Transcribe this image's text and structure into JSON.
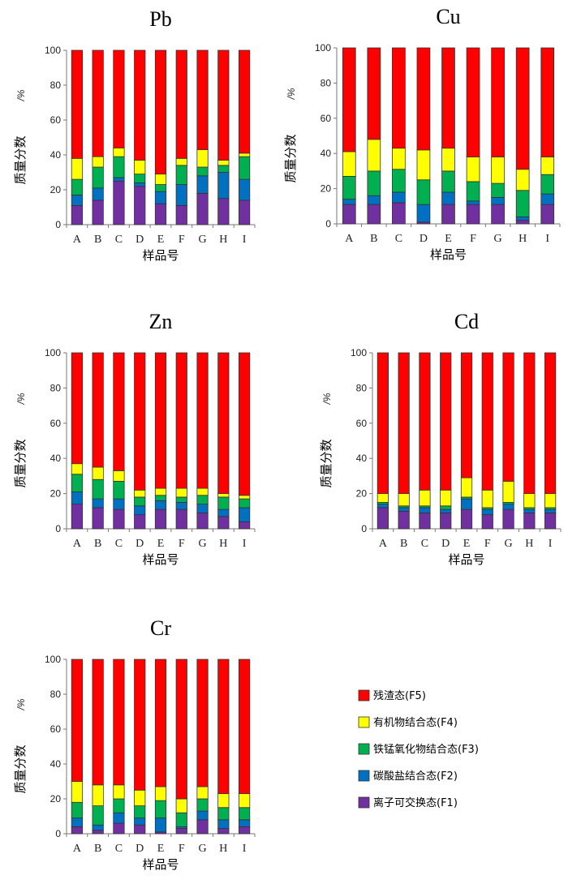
{
  "chart_data": [
    {
      "type": "bar",
      "stacked": true,
      "title": "Pb",
      "xlabel": "样品号",
      "ylabel": "质量分数",
      "yunit": "/%",
      "ylim": [
        0,
        100
      ],
      "yticks": [
        0,
        20,
        40,
        60,
        80,
        100
      ],
      "categories": [
        "A",
        "B",
        "C",
        "D",
        "E",
        "F",
        "G",
        "H",
        "I"
      ],
      "series": [
        {
          "name": "离子可交换态(F1)",
          "values": [
            11,
            14,
            25,
            22,
            12,
            11,
            18,
            15,
            14
          ]
        },
        {
          "name": "碳酸盐结合态(F2)",
          "values": [
            6,
            7,
            2,
            2,
            7,
            12,
            10,
            15,
            12
          ]
        },
        {
          "name": "铁锰氧化物结合态(F3)",
          "values": [
            9,
            12,
            12,
            5,
            4,
            11,
            5,
            4,
            13
          ]
        },
        {
          "name": "有机物结合态(F4)",
          "values": [
            12,
            6,
            5,
            8,
            6,
            4,
            10,
            3,
            2
          ]
        },
        {
          "name": "残渣态(F5)",
          "values": [
            62,
            61,
            56,
            63,
            71,
            62,
            57,
            63,
            59
          ]
        }
      ]
    },
    {
      "type": "bar",
      "stacked": true,
      "title": "Cu",
      "xlabel": "样品号",
      "ylabel": "质量分数",
      "yunit": "/%",
      "ylim": [
        0,
        100
      ],
      "yticks": [
        0,
        20,
        40,
        60,
        80,
        100
      ],
      "categories": [
        "A",
        "B",
        "C",
        "D",
        "E",
        "F",
        "G",
        "H",
        "I"
      ],
      "series": [
        {
          "name": "离子可交换态(F1)",
          "values": [
            11,
            11,
            12,
            1,
            11,
            11,
            11,
            2,
            11
          ]
        },
        {
          "name": "碳酸盐结合态(F2)",
          "values": [
            3,
            5,
            6,
            10,
            7,
            2,
            4,
            2,
            6
          ]
        },
        {
          "name": "铁锰氧化物结合态(F3)",
          "values": [
            13,
            14,
            13,
            14,
            12,
            11,
            8,
            15,
            11
          ]
        },
        {
          "name": "有机物结合态(F4)",
          "values": [
            14,
            18,
            12,
            17,
            13,
            14,
            15,
            12,
            10
          ]
        },
        {
          "name": "残渣态(F5)",
          "values": [
            59,
            52,
            57,
            58,
            57,
            62,
            62,
            69,
            62
          ]
        }
      ]
    },
    {
      "type": "bar",
      "stacked": true,
      "title": "Zn",
      "xlabel": "样品号",
      "ylabel": "质量分数",
      "yunit": "/%",
      "ylim": [
        0,
        100
      ],
      "yticks": [
        0,
        20,
        40,
        60,
        80,
        100
      ],
      "categories": [
        "A",
        "B",
        "C",
        "D",
        "E",
        "F",
        "G",
        "H",
        "I"
      ],
      "series": [
        {
          "name": "离子可交换态(F1)",
          "values": [
            14,
            12,
            11,
            8,
            11,
            11,
            9,
            7,
            4
          ]
        },
        {
          "name": "碳酸盐结合态(F2)",
          "values": [
            7,
            5,
            6,
            5,
            5,
            4,
            5,
            4,
            8
          ]
        },
        {
          "name": "铁锰氧化物结合态(F3)",
          "values": [
            10,
            11,
            10,
            5,
            3,
            3,
            5,
            7,
            5
          ]
        },
        {
          "name": "有机物结合态(F4)",
          "values": [
            6,
            7,
            6,
            4,
            4,
            5,
            4,
            2,
            2
          ]
        },
        {
          "name": "残渣态(F5)",
          "values": [
            63,
            65,
            67,
            78,
            77,
            77,
            77,
            80,
            81
          ]
        }
      ]
    },
    {
      "type": "bar",
      "stacked": true,
      "title": "Cd",
      "xlabel": "样品号",
      "ylabel": "质量分数",
      "yunit": "/%",
      "ylim": [
        0,
        100
      ],
      "yticks": [
        0,
        20,
        40,
        60,
        80,
        100
      ],
      "categories": [
        "A",
        "B",
        "C",
        "D",
        "E",
        "F",
        "G",
        "H",
        "I"
      ],
      "series": [
        {
          "name": "离子可交换态(F1)",
          "values": [
            12,
            10,
            9,
            9,
            11,
            8,
            11,
            9,
            9
          ]
        },
        {
          "name": "碳酸盐结合态(F2)",
          "values": [
            2,
            2,
            3,
            2,
            6,
            3,
            3,
            2,
            2
          ]
        },
        {
          "name": "铁锰氧化物结合态(F3)",
          "values": [
            1,
            1,
            1,
            2,
            1,
            1,
            1,
            1,
            1
          ]
        },
        {
          "name": "有机物结合态(F4)",
          "values": [
            5,
            7,
            9,
            9,
            11,
            10,
            12,
            8,
            8
          ]
        },
        {
          "name": "残渣态(F5)",
          "values": [
            80,
            80,
            78,
            78,
            71,
            78,
            73,
            80,
            80
          ]
        }
      ]
    },
    {
      "type": "bar",
      "stacked": true,
      "title": "Cr",
      "xlabel": "样品号",
      "ylabel": "质量分数",
      "yunit": "/%",
      "ylim": [
        0,
        100
      ],
      "yticks": [
        0,
        20,
        40,
        60,
        80,
        100
      ],
      "categories": [
        "A",
        "B",
        "C",
        "D",
        "E",
        "F",
        "G",
        "H",
        "I"
      ],
      "series": [
        {
          "name": "离子可交换态(F1)",
          "values": [
            4,
            2,
            6,
            5,
            1,
            3,
            8,
            3,
            4
          ]
        },
        {
          "name": "碳酸盐结合态(F2)",
          "values": [
            5,
            3,
            6,
            4,
            8,
            1,
            5,
            5,
            4
          ]
        },
        {
          "name": "铁锰氧化物结合态(F3)",
          "values": [
            9,
            11,
            8,
            7,
            10,
            8,
            7,
            7,
            7
          ]
        },
        {
          "name": "有机物结合态(F4)",
          "values": [
            12,
            12,
            8,
            9,
            8,
            8,
            7,
            8,
            8
          ]
        },
        {
          "name": "残渣态(F5)",
          "values": [
            70,
            72,
            72,
            75,
            73,
            80,
            73,
            77,
            77
          ]
        }
      ]
    }
  ],
  "legend": {
    "items": [
      {
        "label": "残渣态(F5)",
        "color": "#ff0000"
      },
      {
        "label": "有机物结合态(F4)",
        "color": "#ffff00"
      },
      {
        "label": "铁锰氧化物结合态(F3)",
        "color": "#00b050"
      },
      {
        "label": "碳酸盐结合态(F2)",
        "color": "#0070c0"
      },
      {
        "label": "离子可交换态(F1)",
        "color": "#7030a0"
      }
    ]
  },
  "colors": [
    "#7030a0",
    "#0070c0",
    "#00b050",
    "#ffff00",
    "#ff0000"
  ]
}
